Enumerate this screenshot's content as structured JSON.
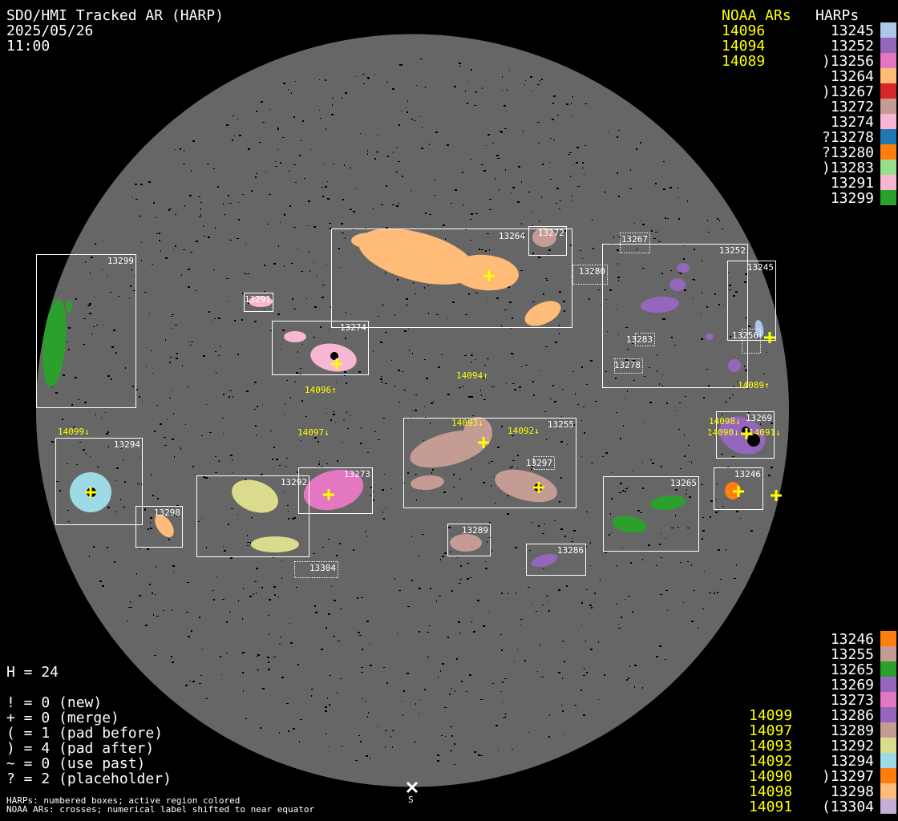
{
  "header": {
    "title": "SDO/HMI Tracked AR (HARP)",
    "date": "2025/05/26",
    "time": "11:00"
  },
  "legend_top": {
    "noaa_heading": "NOAA ARs",
    "harp_heading": "HARPs",
    "noaa": [
      "14096",
      "14094",
      "14089"
    ],
    "harps": [
      {
        "label": "13245",
        "color": "#aec7e8"
      },
      {
        "label": "13252",
        "color": "#9467bd"
      },
      {
        "label": ")13256",
        "color": "#e377c2"
      },
      {
        "label": "13264",
        "color": "#ffbb78"
      },
      {
        "label": ")13267",
        "color": "#d62728"
      },
      {
        "label": "13272",
        "color": "#c49c94"
      },
      {
        "label": "13274",
        "color": "#f7b6d2"
      },
      {
        "label": "?13278",
        "color": "#1f77b4"
      },
      {
        "label": "?13280",
        "color": "#ff7f0e"
      },
      {
        "label": ")13283",
        "color": "#98df8a"
      },
      {
        "label": "13291",
        "color": "#f7b6d2"
      },
      {
        "label": "13299",
        "color": "#2ca02c"
      }
    ]
  },
  "legend_bottom": {
    "noaa": [
      "14099",
      "14097",
      "14093",
      "14092",
      "14090",
      "14098",
      "14091"
    ],
    "harps": [
      {
        "label": "13246",
        "color": "#ff7f0e"
      },
      {
        "label": "13255",
        "color": "#c49c94"
      },
      {
        "label": "13265",
        "color": "#2ca02c"
      },
      {
        "label": "13269",
        "color": "#9467bd"
      },
      {
        "label": "13273",
        "color": "#e377c2"
      },
      {
        "label": "13286",
        "color": "#9467bd"
      },
      {
        "label": "13289",
        "color": "#c49c94"
      },
      {
        "label": "13292",
        "color": "#dbdb8d"
      },
      {
        "label": "13294",
        "color": "#9edae5"
      },
      {
        "label": ")13297",
        "color": "#ff7f0e"
      },
      {
        "label": "13298",
        "color": "#ffbb78"
      },
      {
        "label": "(13304",
        "color": "#c5b0d5"
      }
    ]
  },
  "stats": [
    "H = 24",
    "! = 0 (new)",
    "+ = 0 (merge)",
    "( = 1 (pad before)",
    ") = 4 (pad after)",
    "~ = 0 (use past)",
    "? = 2 (placeholder)"
  ],
  "footnotes": [
    "HARPs: numbered boxes; active region colored",
    "NOAA ARs: crosses; numerical label shifted to near equator"
  ],
  "south_marker": "S",
  "disk": {
    "background": "#666666",
    "harp_box_labels": [
      "13299",
      "13291",
      "13274",
      "13264",
      "13272",
      "13280",
      "13267",
      "13252",
      "13245",
      "13256",
      "13283",
      "13278",
      "13269",
      "13246",
      "13265",
      "13294",
      "13298",
      "13292",
      "13273",
      "13255",
      "13297",
      "13289",
      "13286",
      "13304"
    ],
    "noaa_labels": [
      "14096↑",
      "14094↑",
      "14089↑",
      "14099↓",
      "14097↓",
      "14093↓",
      "14092↓",
      "14098↓",
      "14090↓",
      "14091↓"
    ]
  }
}
